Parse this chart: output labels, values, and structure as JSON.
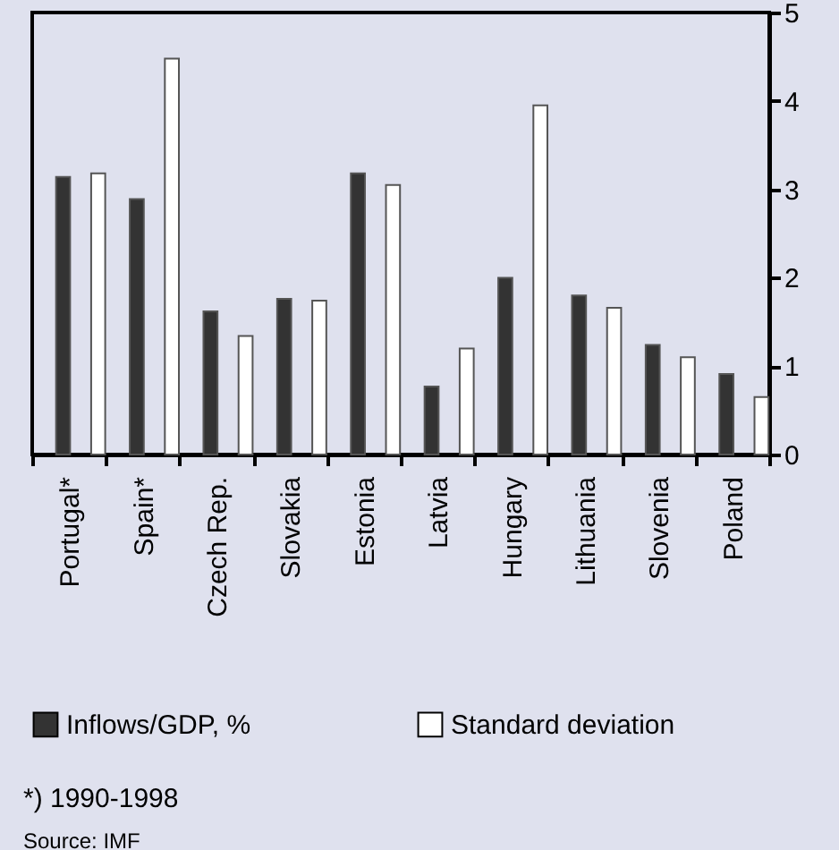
{
  "chart_data": {
    "type": "bar",
    "categories": [
      "Portugal*",
      "Spain*",
      "Czech Rep.",
      "Slovakia",
      "Estonia",
      "Latvia",
      "Hungary",
      "Lithuania",
      "Slovenia",
      "Poland"
    ],
    "series": [
      {
        "name": "Inflows/GDP, %",
        "color": "#333333",
        "values": [
          3.14,
          2.89,
          1.62,
          1.76,
          3.18,
          0.77,
          2.0,
          1.8,
          1.24,
          0.91
        ]
      },
      {
        "name": "Standard deviation",
        "color": "#ffffff",
        "values": [
          3.18,
          4.48,
          1.34,
          1.74,
          3.05,
          1.2,
          3.95,
          1.66,
          1.1,
          0.65
        ]
      }
    ],
    "ylim": [
      0,
      5
    ],
    "yticks": [
      0,
      1,
      2,
      3,
      4,
      5
    ],
    "legend": "bottom",
    "annotations": [
      "*) 1990-1998",
      "Source: IMF"
    ]
  }
}
